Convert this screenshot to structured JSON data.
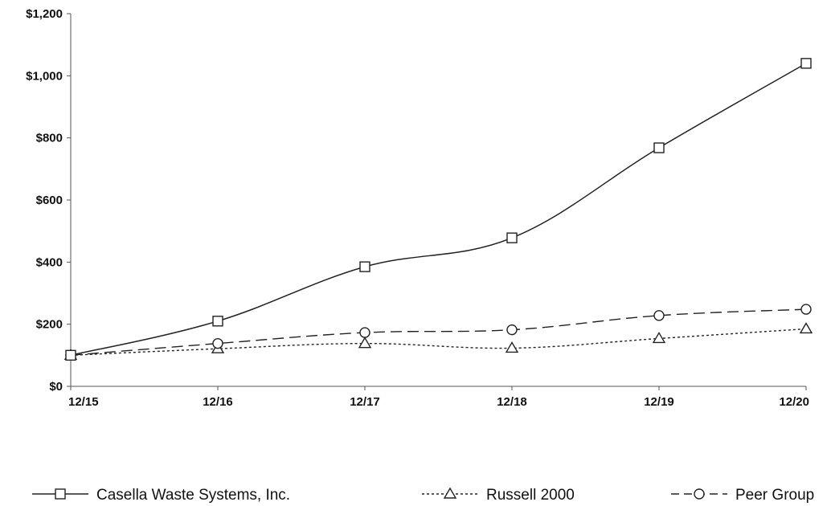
{
  "chart_data": {
    "type": "line",
    "title": "",
    "xlabel": "",
    "ylabel": "",
    "categories": [
      "12/15",
      "12/16",
      "12/17",
      "12/18",
      "12/19",
      "12/20"
    ],
    "y_ticks": [
      "$0",
      "$200",
      "$400",
      "$600",
      "$800",
      "$1,000",
      "$1,200"
    ],
    "y_tick_values": [
      0,
      200,
      400,
      600,
      800,
      1000,
      1200
    ],
    "ylim": [
      0,
      1200
    ],
    "grid": false,
    "legend_position": "bottom",
    "series": [
      {
        "name": "Casella Waste Systems, Inc.",
        "values": [
          100,
          210,
          385,
          478,
          768,
          1040
        ],
        "marker": "square",
        "line_style": "solid",
        "color": "#222222"
      },
      {
        "name": "Russell 2000",
        "values": [
          100,
          121,
          138,
          123,
          154,
          185
        ],
        "marker": "triangle",
        "line_style": "dotted",
        "color": "#222222"
      },
      {
        "name": "Peer Group",
        "values": [
          100,
          138,
          173,
          182,
          228,
          248
        ],
        "marker": "circle",
        "line_style": "dashed",
        "color": "#222222"
      }
    ]
  }
}
